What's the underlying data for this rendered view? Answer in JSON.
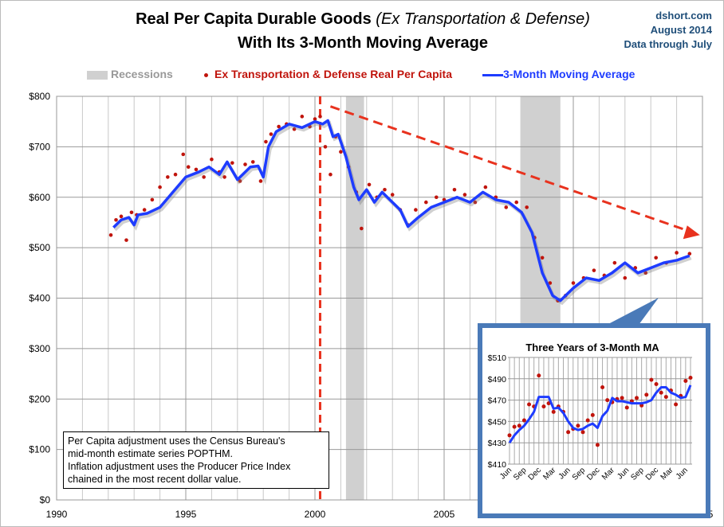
{
  "header": {
    "title_line1_main": "Real Per Capita Durable Goods ",
    "title_line1_italic": "(Ex Transportation & Defense)",
    "title_line2": "With Its 3-Month Moving Average",
    "source": [
      "dshort.com",
      "August 2014",
      "Data through July"
    ]
  },
  "note": [
    "Per Capita adjustment uses the Census Bureau's",
    "mid-month estimate series POPTHM.",
    "Inflation adjustment uses the Producer Price Index",
    "chained in the most recent dollar value."
  ],
  "colors": {
    "dots": "#c0140c",
    "ma": "#1e3cff",
    "recession": "#d0d0d0",
    "trend": "#e8321e",
    "inset_border": "#4a7ab8",
    "source": "#1f4e79"
  },
  "chart_data": [
    {
      "type": "line",
      "title": "Real Per Capita Durable Goods (Ex Transportation & Defense) With Its 3-Month Moving Average",
      "xlabel": "",
      "ylabel": "",
      "xlim": [
        1990,
        2015
      ],
      "ylim": [
        0,
        800
      ],
      "x_ticks": [
        1990,
        1995,
        2000,
        2005,
        2010,
        2015
      ],
      "y_ticks": [
        0,
        100,
        200,
        300,
        400,
        500,
        600,
        700,
        800
      ],
      "y_tick_labels": [
        "$0",
        "$100",
        "$200",
        "$300",
        "$400",
        "$500",
        "$600",
        "$700",
        "$800"
      ],
      "grid": true,
      "legend": {
        "placement": "top",
        "entries": [
          "Recessions",
          "Ex Transportation & Defense Real Per Capita",
          "3-Month Moving Average"
        ]
      },
      "recessions": [
        [
          2001.2,
          2001.9
        ],
        [
          2007.95,
          2009.5
        ]
      ],
      "annotations": {
        "vertical_dashed_line_x": 2000.2,
        "trend_arrow": [
          [
            2000.6,
            780
          ],
          [
            2014.9,
            525
          ]
        ]
      },
      "series": [
        {
          "name": "3-Month Moving Average",
          "x": [
            1992.2,
            1992.5,
            1992.8,
            1993.0,
            1993.15,
            1993.5,
            1994.0,
            1994.5,
            1995.0,
            1995.5,
            1995.9,
            1996.3,
            1996.6,
            1997.0,
            1997.5,
            1997.8,
            1998.0,
            1998.2,
            1998.5,
            1999.0,
            1999.5,
            2000.0,
            2000.3,
            2000.5,
            2000.7,
            2000.9,
            2001.2,
            2001.5,
            2001.7,
            2002.0,
            2002.3,
            2002.6,
            2003.0,
            2003.3,
            2003.6,
            2004.0,
            2004.5,
            2005.0,
            2005.5,
            2006.0,
            2006.5,
            2007.0,
            2007.5,
            2008.0,
            2008.4,
            2008.8,
            2009.2,
            2009.5,
            2010.0,
            2010.5,
            2011.0,
            2011.5,
            2012.0,
            2012.5,
            2013.0,
            2013.5,
            2014.0,
            2014.5
          ],
          "values": [
            540,
            555,
            560,
            545,
            565,
            568,
            580,
            610,
            640,
            650,
            660,
            645,
            670,
            635,
            660,
            662,
            640,
            700,
            730,
            745,
            738,
            750,
            745,
            752,
            720,
            725,
            680,
            620,
            595,
            615,
            590,
            610,
            590,
            575,
            542,
            560,
            580,
            590,
            600,
            590,
            610,
            595,
            590,
            570,
            530,
            450,
            405,
            395,
            420,
            440,
            435,
            450,
            470,
            450,
            460,
            470,
            475,
            484
          ]
        },
        {
          "name": "Ex Transportation & Defense Real Per Capita",
          "x": [
            1992.1,
            1992.3,
            1992.5,
            1992.7,
            1992.9,
            1993.1,
            1993.4,
            1993.7,
            1994.0,
            1994.3,
            1994.6,
            1994.9,
            1995.1,
            1995.4,
            1995.7,
            1996.0,
            1996.3,
            1996.5,
            1996.8,
            1997.1,
            1997.3,
            1997.6,
            1997.9,
            1998.1,
            1998.3,
            1998.6,
            1998.9,
            1999.2,
            1999.5,
            1999.8,
            2000.0,
            2000.2,
            2000.4,
            2000.6,
            2000.8,
            2001.0,
            2001.3,
            2001.6,
            2001.8,
            2002.1,
            2002.4,
            2002.7,
            2003.0,
            2003.3,
            2003.6,
            2003.9,
            2004.3,
            2004.7,
            2005.0,
            2005.4,
            2005.8,
            2006.2,
            2006.6,
            2007.0,
            2007.4,
            2007.8,
            2008.2,
            2008.5,
            2008.8,
            2009.1,
            2009.4,
            2009.7,
            2010.0,
            2010.4,
            2010.8,
            2011.2,
            2011.6,
            2012.0,
            2012.4,
            2012.8,
            2013.2,
            2013.6,
            2014.0,
            2014.5
          ],
          "values": [
            525,
            555,
            562,
            515,
            570,
            565,
            575,
            595,
            620,
            640,
            645,
            685,
            660,
            655,
            640,
            675,
            650,
            640,
            668,
            632,
            665,
            670,
            632,
            710,
            725,
            740,
            745,
            735,
            760,
            740,
            755,
            760,
            700,
            645,
            720,
            690,
            660,
            610,
            538,
            625,
            600,
            615,
            605,
            575,
            545,
            575,
            590,
            600,
            595,
            615,
            605,
            590,
            620,
            600,
            580,
            590,
            580,
            520,
            480,
            430,
            395,
            405,
            430,
            440,
            455,
            445,
            470,
            440,
            460,
            450,
            480,
            470,
            490,
            488
          ]
        }
      ]
    },
    {
      "type": "line",
      "title": "Three Years of 3-Month MA",
      "ylim": [
        410,
        510
      ],
      "y_ticks": [
        410,
        430,
        450,
        470,
        490,
        510
      ],
      "y_tick_labels": [
        "$410",
        "$430",
        "$450",
        "$470",
        "$490",
        "$510"
      ],
      "x_labels": [
        "Jun",
        "Sep",
        "Dec",
        "Mar",
        "Jun",
        "Sep",
        "Dec",
        "Mar",
        "Jun",
        "Sep",
        "Dec",
        "Mar",
        "Jun"
      ],
      "months": 38,
      "series": [
        {
          "name": "3-Month MA",
          "values": [
            430,
            437,
            442,
            446,
            452,
            459,
            473,
            473,
            473,
            462,
            463,
            458,
            450,
            444,
            442,
            443,
            446,
            448,
            444,
            455,
            460,
            472,
            469,
            469,
            468,
            467,
            467,
            467,
            468,
            470,
            477,
            482,
            482,
            477,
            475,
            472,
            473,
            484
          ]
        },
        {
          "name": "Monthly",
          "values": [
            437,
            445,
            446,
            451,
            466,
            464,
            493,
            464,
            467,
            459,
            464,
            459,
            440,
            443,
            446,
            440,
            451,
            456,
            428,
            482,
            470,
            468,
            471,
            472,
            463,
            469,
            472,
            465,
            475,
            489,
            485,
            477,
            473,
            479,
            466,
            474,
            488,
            491
          ]
        }
      ]
    }
  ]
}
